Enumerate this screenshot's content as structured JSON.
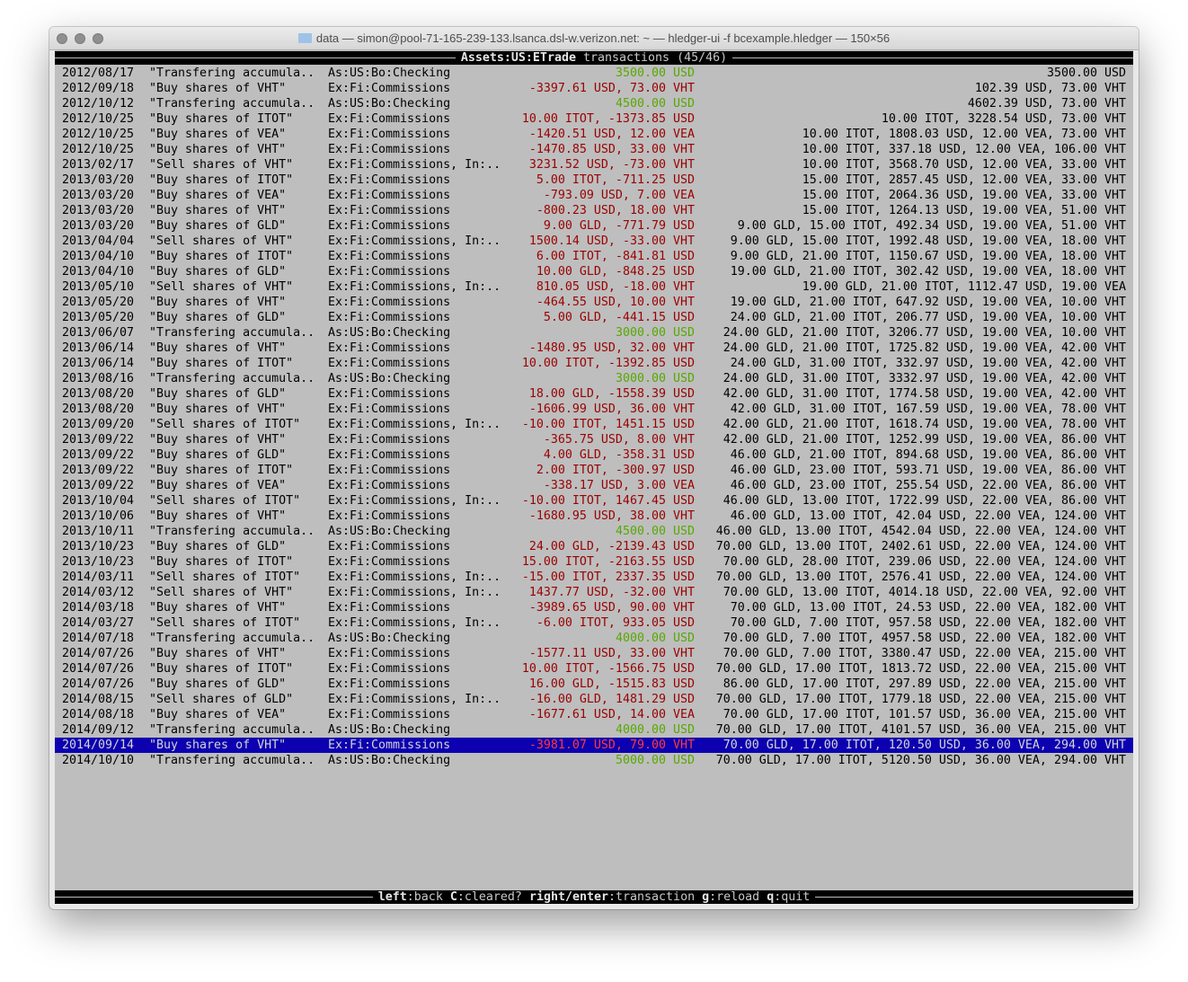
{
  "window": {
    "title": "data — simon@pool-71-165-239-133.lsanca.dsl-w.verizon.net: ~ — hledger-ui -f bcexample.hledger — 150×56"
  },
  "header": {
    "account": "Assets:US:ETrade",
    "label": "transactions",
    "position": "(45/46)"
  },
  "footer": {
    "keys": [
      {
        "key": "left",
        "action": "back"
      },
      {
        "key": "C",
        "action": "cleared?"
      },
      {
        "key": "right/enter",
        "action": "transaction"
      },
      {
        "key": "g",
        "action": "reload"
      },
      {
        "key": "q",
        "action": "quit"
      }
    ]
  },
  "colors": {
    "background": "#bebebe",
    "negative_amount": "#9a0000",
    "positive_amount": "#58a800",
    "selection": "#0c00b0"
  },
  "selected_index": 44,
  "rows": [
    {
      "date": "2012/08/17",
      "desc": "\"Transfering accumula..",
      "acct": "As:US:Bo:Checking",
      "amt": "3500.00 USD",
      "pos": true,
      "bal": "3500.00 USD"
    },
    {
      "date": "2012/09/18",
      "desc": "\"Buy shares of VHT\"",
      "acct": "Ex:Fi:Commissions",
      "amt": "-3397.61 USD, 73.00 VHT",
      "pos": false,
      "bal": "102.39 USD, 73.00 VHT"
    },
    {
      "date": "2012/10/12",
      "desc": "\"Transfering accumula..",
      "acct": "As:US:Bo:Checking",
      "amt": "4500.00 USD",
      "pos": true,
      "bal": "4602.39 USD, 73.00 VHT"
    },
    {
      "date": "2012/10/25",
      "desc": "\"Buy shares of ITOT\"",
      "acct": "Ex:Fi:Commissions",
      "amt": "10.00 ITOT, -1373.85 USD",
      "pos": false,
      "bal": "10.00 ITOT, 3228.54 USD, 73.00 VHT"
    },
    {
      "date": "2012/10/25",
      "desc": "\"Buy shares of VEA\"",
      "acct": "Ex:Fi:Commissions",
      "amt": "-1420.51 USD, 12.00 VEA",
      "pos": false,
      "bal": "10.00 ITOT, 1808.03 USD, 12.00 VEA, 73.00 VHT"
    },
    {
      "date": "2012/10/25",
      "desc": "\"Buy shares of VHT\"",
      "acct": "Ex:Fi:Commissions",
      "amt": "-1470.85 USD, 33.00 VHT",
      "pos": false,
      "bal": "10.00 ITOT, 337.18 USD, 12.00 VEA, 106.00 VHT"
    },
    {
      "date": "2013/02/17",
      "desc": "\"Sell shares of VHT\"",
      "acct": "Ex:Fi:Commissions, In:..",
      "amt": "3231.52 USD, -73.00 VHT",
      "pos": false,
      "bal": "10.00 ITOT, 3568.70 USD, 12.00 VEA, 33.00 VHT"
    },
    {
      "date": "2013/03/20",
      "desc": "\"Buy shares of ITOT\"",
      "acct": "Ex:Fi:Commissions",
      "amt": "5.00 ITOT, -711.25 USD",
      "pos": false,
      "bal": "15.00 ITOT, 2857.45 USD, 12.00 VEA, 33.00 VHT"
    },
    {
      "date": "2013/03/20",
      "desc": "\"Buy shares of VEA\"",
      "acct": "Ex:Fi:Commissions",
      "amt": "-793.09 USD, 7.00 VEA",
      "pos": false,
      "bal": "15.00 ITOT, 2064.36 USD, 19.00 VEA, 33.00 VHT"
    },
    {
      "date": "2013/03/20",
      "desc": "\"Buy shares of VHT\"",
      "acct": "Ex:Fi:Commissions",
      "amt": "-800.23 USD, 18.00 VHT",
      "pos": false,
      "bal": "15.00 ITOT, 1264.13 USD, 19.00 VEA, 51.00 VHT"
    },
    {
      "date": "2013/03/20",
      "desc": "\"Buy shares of GLD\"",
      "acct": "Ex:Fi:Commissions",
      "amt": "9.00 GLD, -771.79 USD",
      "pos": false,
      "bal": "9.00 GLD, 15.00 ITOT, 492.34 USD, 19.00 VEA, 51.00 VHT"
    },
    {
      "date": "2013/04/04",
      "desc": "\"Sell shares of VHT\"",
      "acct": "Ex:Fi:Commissions, In:..",
      "amt": "1500.14 USD, -33.00 VHT",
      "pos": false,
      "bal": "9.00 GLD, 15.00 ITOT, 1992.48 USD, 19.00 VEA, 18.00 VHT"
    },
    {
      "date": "2013/04/10",
      "desc": "\"Buy shares of ITOT\"",
      "acct": "Ex:Fi:Commissions",
      "amt": "6.00 ITOT, -841.81 USD",
      "pos": false,
      "bal": "9.00 GLD, 21.00 ITOT, 1150.67 USD, 19.00 VEA, 18.00 VHT"
    },
    {
      "date": "2013/04/10",
      "desc": "\"Buy shares of GLD\"",
      "acct": "Ex:Fi:Commissions",
      "amt": "10.00 GLD, -848.25 USD",
      "pos": false,
      "bal": "19.00 GLD, 21.00 ITOT, 302.42 USD, 19.00 VEA, 18.00 VHT"
    },
    {
      "date": "2013/05/10",
      "desc": "\"Sell shares of VHT\"",
      "acct": "Ex:Fi:Commissions, In:..",
      "amt": "810.05 USD, -18.00 VHT",
      "pos": false,
      "bal": "19.00 GLD, 21.00 ITOT, 1112.47 USD, 19.00 VEA"
    },
    {
      "date": "2013/05/20",
      "desc": "\"Buy shares of VHT\"",
      "acct": "Ex:Fi:Commissions",
      "amt": "-464.55 USD, 10.00 VHT",
      "pos": false,
      "bal": "19.00 GLD, 21.00 ITOT, 647.92 USD, 19.00 VEA, 10.00 VHT"
    },
    {
      "date": "2013/05/20",
      "desc": "\"Buy shares of GLD\"",
      "acct": "Ex:Fi:Commissions",
      "amt": "5.00 GLD, -441.15 USD",
      "pos": false,
      "bal": "24.00 GLD, 21.00 ITOT, 206.77 USD, 19.00 VEA, 10.00 VHT"
    },
    {
      "date": "2013/06/07",
      "desc": "\"Transfering accumula..",
      "acct": "As:US:Bo:Checking",
      "amt": "3000.00 USD",
      "pos": true,
      "bal": "24.00 GLD, 21.00 ITOT, 3206.77 USD, 19.00 VEA, 10.00 VHT"
    },
    {
      "date": "2013/06/14",
      "desc": "\"Buy shares of VHT\"",
      "acct": "Ex:Fi:Commissions",
      "amt": "-1480.95 USD, 32.00 VHT",
      "pos": false,
      "bal": "24.00 GLD, 21.00 ITOT, 1725.82 USD, 19.00 VEA, 42.00 VHT"
    },
    {
      "date": "2013/06/14",
      "desc": "\"Buy shares of ITOT\"",
      "acct": "Ex:Fi:Commissions",
      "amt": "10.00 ITOT, -1392.85 USD",
      "pos": false,
      "bal": "24.00 GLD, 31.00 ITOT, 332.97 USD, 19.00 VEA, 42.00 VHT"
    },
    {
      "date": "2013/08/16",
      "desc": "\"Transfering accumula..",
      "acct": "As:US:Bo:Checking",
      "amt": "3000.00 USD",
      "pos": true,
      "bal": "24.00 GLD, 31.00 ITOT, 3332.97 USD, 19.00 VEA, 42.00 VHT"
    },
    {
      "date": "2013/08/20",
      "desc": "\"Buy shares of GLD\"",
      "acct": "Ex:Fi:Commissions",
      "amt": "18.00 GLD, -1558.39 USD",
      "pos": false,
      "bal": "42.00 GLD, 31.00 ITOT, 1774.58 USD, 19.00 VEA, 42.00 VHT"
    },
    {
      "date": "2013/08/20",
      "desc": "\"Buy shares of VHT\"",
      "acct": "Ex:Fi:Commissions",
      "amt": "-1606.99 USD, 36.00 VHT",
      "pos": false,
      "bal": "42.00 GLD, 31.00 ITOT, 167.59 USD, 19.00 VEA, 78.00 VHT"
    },
    {
      "date": "2013/09/20",
      "desc": "\"Sell shares of ITOT\"",
      "acct": "Ex:Fi:Commissions, In:..",
      "amt": "-10.00 ITOT, 1451.15 USD",
      "pos": false,
      "bal": "42.00 GLD, 21.00 ITOT, 1618.74 USD, 19.00 VEA, 78.00 VHT"
    },
    {
      "date": "2013/09/22",
      "desc": "\"Buy shares of VHT\"",
      "acct": "Ex:Fi:Commissions",
      "amt": "-365.75 USD, 8.00 VHT",
      "pos": false,
      "bal": "42.00 GLD, 21.00 ITOT, 1252.99 USD, 19.00 VEA, 86.00 VHT"
    },
    {
      "date": "2013/09/22",
      "desc": "\"Buy shares of GLD\"",
      "acct": "Ex:Fi:Commissions",
      "amt": "4.00 GLD, -358.31 USD",
      "pos": false,
      "bal": "46.00 GLD, 21.00 ITOT, 894.68 USD, 19.00 VEA, 86.00 VHT"
    },
    {
      "date": "2013/09/22",
      "desc": "\"Buy shares of ITOT\"",
      "acct": "Ex:Fi:Commissions",
      "amt": "2.00 ITOT, -300.97 USD",
      "pos": false,
      "bal": "46.00 GLD, 23.00 ITOT, 593.71 USD, 19.00 VEA, 86.00 VHT"
    },
    {
      "date": "2013/09/22",
      "desc": "\"Buy shares of VEA\"",
      "acct": "Ex:Fi:Commissions",
      "amt": "-338.17 USD, 3.00 VEA",
      "pos": false,
      "bal": "46.00 GLD, 23.00 ITOT, 255.54 USD, 22.00 VEA, 86.00 VHT"
    },
    {
      "date": "2013/10/04",
      "desc": "\"Sell shares of ITOT\"",
      "acct": "Ex:Fi:Commissions, In:..",
      "amt": "-10.00 ITOT, 1467.45 USD",
      "pos": false,
      "bal": "46.00 GLD, 13.00 ITOT, 1722.99 USD, 22.00 VEA, 86.00 VHT"
    },
    {
      "date": "2013/10/06",
      "desc": "\"Buy shares of VHT\"",
      "acct": "Ex:Fi:Commissions",
      "amt": "-1680.95 USD, 38.00 VHT",
      "pos": false,
      "bal": "46.00 GLD, 13.00 ITOT, 42.04 USD, 22.00 VEA, 124.00 VHT"
    },
    {
      "date": "2013/10/11",
      "desc": "\"Transfering accumula..",
      "acct": "As:US:Bo:Checking",
      "amt": "4500.00 USD",
      "pos": true,
      "bal": "46.00 GLD, 13.00 ITOT, 4542.04 USD, 22.00 VEA, 124.00 VHT"
    },
    {
      "date": "2013/10/23",
      "desc": "\"Buy shares of GLD\"",
      "acct": "Ex:Fi:Commissions",
      "amt": "24.00 GLD, -2139.43 USD",
      "pos": false,
      "bal": "70.00 GLD, 13.00 ITOT, 2402.61 USD, 22.00 VEA, 124.00 VHT"
    },
    {
      "date": "2013/10/23",
      "desc": "\"Buy shares of ITOT\"",
      "acct": "Ex:Fi:Commissions",
      "amt": "15.00 ITOT, -2163.55 USD",
      "pos": false,
      "bal": "70.00 GLD, 28.00 ITOT, 239.06 USD, 22.00 VEA, 124.00 VHT"
    },
    {
      "date": "2014/03/11",
      "desc": "\"Sell shares of ITOT\"",
      "acct": "Ex:Fi:Commissions, In:..",
      "amt": "-15.00 ITOT, 2337.35 USD",
      "pos": false,
      "bal": "70.00 GLD, 13.00 ITOT, 2576.41 USD, 22.00 VEA, 124.00 VHT"
    },
    {
      "date": "2014/03/12",
      "desc": "\"Sell shares of VHT\"",
      "acct": "Ex:Fi:Commissions, In:..",
      "amt": "1437.77 USD, -32.00 VHT",
      "pos": false,
      "bal": "70.00 GLD, 13.00 ITOT, 4014.18 USD, 22.00 VEA, 92.00 VHT"
    },
    {
      "date": "2014/03/18",
      "desc": "\"Buy shares of VHT\"",
      "acct": "Ex:Fi:Commissions",
      "amt": "-3989.65 USD, 90.00 VHT",
      "pos": false,
      "bal": "70.00 GLD, 13.00 ITOT, 24.53 USD, 22.00 VEA, 182.00 VHT"
    },
    {
      "date": "2014/03/27",
      "desc": "\"Sell shares of ITOT\"",
      "acct": "Ex:Fi:Commissions, In:..",
      "amt": "-6.00 ITOT, 933.05 USD",
      "pos": false,
      "bal": "70.00 GLD, 7.00 ITOT, 957.58 USD, 22.00 VEA, 182.00 VHT"
    },
    {
      "date": "2014/07/18",
      "desc": "\"Transfering accumula..",
      "acct": "As:US:Bo:Checking",
      "amt": "4000.00 USD",
      "pos": true,
      "bal": "70.00 GLD, 7.00 ITOT, 4957.58 USD, 22.00 VEA, 182.00 VHT"
    },
    {
      "date": "2014/07/26",
      "desc": "\"Buy shares of VHT\"",
      "acct": "Ex:Fi:Commissions",
      "amt": "-1577.11 USD, 33.00 VHT",
      "pos": false,
      "bal": "70.00 GLD, 7.00 ITOT, 3380.47 USD, 22.00 VEA, 215.00 VHT"
    },
    {
      "date": "2014/07/26",
      "desc": "\"Buy shares of ITOT\"",
      "acct": "Ex:Fi:Commissions",
      "amt": "10.00 ITOT, -1566.75 USD",
      "pos": false,
      "bal": "70.00 GLD, 17.00 ITOT, 1813.72 USD, 22.00 VEA, 215.00 VHT"
    },
    {
      "date": "2014/07/26",
      "desc": "\"Buy shares of GLD\"",
      "acct": "Ex:Fi:Commissions",
      "amt": "16.00 GLD, -1515.83 USD",
      "pos": false,
      "bal": "86.00 GLD, 17.00 ITOT, 297.89 USD, 22.00 VEA, 215.00 VHT"
    },
    {
      "date": "2014/08/15",
      "desc": "\"Sell shares of GLD\"",
      "acct": "Ex:Fi:Commissions, In:..",
      "amt": "-16.00 GLD, 1481.29 USD",
      "pos": false,
      "bal": "70.00 GLD, 17.00 ITOT, 1779.18 USD, 22.00 VEA, 215.00 VHT"
    },
    {
      "date": "2014/08/18",
      "desc": "\"Buy shares of VEA\"",
      "acct": "Ex:Fi:Commissions",
      "amt": "-1677.61 USD, 14.00 VEA",
      "pos": false,
      "bal": "70.00 GLD, 17.00 ITOT, 101.57 USD, 36.00 VEA, 215.00 VHT"
    },
    {
      "date": "2014/09/12",
      "desc": "\"Transfering accumula..",
      "acct": "As:US:Bo:Checking",
      "amt": "4000.00 USD",
      "pos": true,
      "bal": "70.00 GLD, 17.00 ITOT, 4101.57 USD, 36.00 VEA, 215.00 VHT"
    },
    {
      "date": "2014/09/14",
      "desc": "\"Buy shares of VHT\"",
      "acct": "Ex:Fi:Commissions",
      "amt": "-3981.07 USD, 79.00 VHT",
      "pos": false,
      "bal": "70.00 GLD, 17.00 ITOT, 120.50 USD, 36.00 VEA, 294.00 VHT"
    },
    {
      "date": "2014/10/10",
      "desc": "\"Transfering accumula..",
      "acct": "As:US:Bo:Checking",
      "amt": "5000.00 USD",
      "pos": true,
      "bal": "70.00 GLD, 17.00 ITOT, 5120.50 USD, 36.00 VEA, 294.00 VHT"
    }
  ]
}
